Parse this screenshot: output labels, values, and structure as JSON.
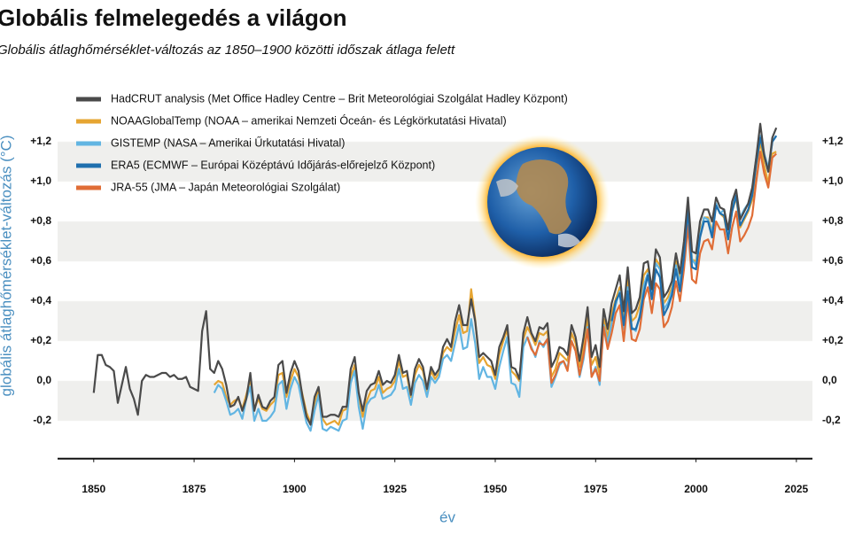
{
  "chart_data": {
    "type": "line",
    "title": "Globális felmelegedés a világon",
    "subtitle": "Globális átlaghőmérséklet-változás az 1850–1900 közötti időszak átlaga felett",
    "x_label": "év",
    "y_label": "globális átlaghőmérséklet-változás (°C)",
    "xlim": [
      1841,
      2029
    ],
    "xticks": [
      1850,
      1875,
      1900,
      1925,
      1950,
      1975,
      2000,
      2025
    ],
    "ylim": [
      -0.39,
      1.5
    ],
    "yticks": [
      {
        "value": -0.2,
        "label": "-0,2"
      },
      {
        "value": 0,
        "label": "0,0"
      },
      {
        "value": 0.2,
        "label": "+0,2"
      },
      {
        "value": 0.4,
        "label": "+0,4"
      },
      {
        "value": 0.6,
        "label": "+0,6"
      },
      {
        "value": 0.8,
        "label": "+0,8"
      },
      {
        "value": 1.0,
        "label": "+1,0"
      },
      {
        "value": 1.2,
        "label": "+1,2"
      }
    ],
    "bands": true,
    "x": [
      1850,
      1851,
      1852,
      1853,
      1854,
      1855,
      1856,
      1857,
      1858,
      1859,
      1860,
      1861,
      1862,
      1863,
      1864,
      1865,
      1866,
      1867,
      1868,
      1869,
      1870,
      1871,
      1872,
      1873,
      1874,
      1875,
      1876,
      1877,
      1878,
      1879,
      1880,
      1881,
      1882,
      1883,
      1884,
      1885,
      1886,
      1887,
      1888,
      1889,
      1890,
      1891,
      1892,
      1893,
      1894,
      1895,
      1896,
      1897,
      1898,
      1899,
      1900,
      1901,
      1902,
      1903,
      1904,
      1905,
      1906,
      1907,
      1908,
      1909,
      1910,
      1911,
      1912,
      1913,
      1914,
      1915,
      1916,
      1917,
      1918,
      1919,
      1920,
      1921,
      1922,
      1923,
      1924,
      1925,
      1926,
      1927,
      1928,
      1929,
      1930,
      1931,
      1932,
      1933,
      1934,
      1935,
      1936,
      1937,
      1938,
      1939,
      1940,
      1941,
      1942,
      1943,
      1944,
      1945,
      1946,
      1947,
      1948,
      1949,
      1950,
      1951,
      1952,
      1953,
      1954,
      1955,
      1956,
      1957,
      1958,
      1959,
      1960,
      1961,
      1962,
      1963,
      1964,
      1965,
      1966,
      1967,
      1968,
      1969,
      1970,
      1971,
      1972,
      1973,
      1974,
      1975,
      1976,
      1977,
      1978,
      1979,
      1980,
      1981,
      1982,
      1983,
      1984,
      1985,
      1986,
      1987,
      1988,
      1989,
      1990,
      1991,
      1992,
      1993,
      1994,
      1995,
      1996,
      1997,
      1998,
      1999,
      2000,
      2001,
      2002,
      2003,
      2004,
      2005,
      2006,
      2007,
      2008,
      2009,
      2010,
      2011,
      2012,
      2013,
      2014,
      2015,
      2016,
      2017,
      2018,
      2019,
      2020
    ],
    "series": [
      {
        "name": "NOAAGlobalTemp (NOAA – amerikai Nemzeti Óceán- és Légkörkutatási Hivatal)",
        "color": "#e6a532",
        "values": [
          null,
          null,
          null,
          null,
          null,
          null,
          null,
          null,
          null,
          null,
          null,
          null,
          null,
          null,
          null,
          null,
          null,
          null,
          null,
          null,
          null,
          null,
          null,
          null,
          null,
          null,
          null,
          null,
          null,
          null,
          -0.02,
          0.0,
          -0.01,
          -0.08,
          -0.12,
          -0.1,
          -0.09,
          -0.14,
          -0.07,
          0.01,
          -0.14,
          -0.09,
          -0.14,
          -0.15,
          -0.12,
          -0.1,
          0.03,
          0.04,
          -0.08,
          0.0,
          0.06,
          0.02,
          -0.07,
          -0.16,
          -0.21,
          -0.11,
          -0.04,
          -0.19,
          -0.22,
          -0.21,
          -0.2,
          -0.22,
          -0.15,
          -0.14,
          0.02,
          0.08,
          -0.08,
          -0.18,
          -0.1,
          -0.05,
          -0.04,
          0.02,
          -0.06,
          -0.04,
          -0.03,
          0.0,
          0.1,
          0.02,
          0.03,
          -0.08,
          0.03,
          0.08,
          0.05,
          -0.05,
          0.05,
          0.01,
          0.04,
          0.14,
          0.17,
          0.15,
          0.25,
          0.33,
          0.24,
          0.25,
          0.46,
          0.31,
          0.09,
          0.12,
          0.08,
          0.07,
          0.01,
          0.13,
          0.2,
          0.26,
          0.05,
          0.03,
          0.0,
          0.21,
          0.27,
          0.23,
          0.18,
          0.24,
          0.23,
          0.25,
          0.02,
          0.06,
          0.14,
          0.12,
          0.1,
          0.24,
          0.19,
          0.07,
          0.18,
          0.32,
          0.08,
          0.12,
          0.03,
          0.31,
          0.22,
          0.34,
          0.41,
          0.47,
          0.31,
          0.51,
          0.3,
          0.32,
          0.38,
          0.53,
          0.56,
          0.44,
          0.61,
          0.58,
          0.39,
          0.42,
          0.47,
          0.6,
          0.51,
          0.67,
          0.85,
          0.61,
          0.6,
          0.75,
          0.82,
          0.82,
          0.75,
          0.88,
          0.84,
          0.82,
          0.71,
          0.85,
          0.92,
          0.77,
          0.81,
          0.85,
          0.91,
          1.08,
          1.2,
          1.08,
          0.99,
          1.14,
          1.15
        ]
      },
      {
        "name": "GISTEMP (NASA – Amerikai Űrkutatási Hivatal)",
        "color": "#62b5e2",
        "values": [
          null,
          null,
          null,
          null,
          null,
          null,
          null,
          null,
          null,
          null,
          null,
          null,
          null,
          null,
          null,
          null,
          null,
          null,
          null,
          null,
          null,
          null,
          null,
          null,
          null,
          null,
          null,
          null,
          null,
          null,
          -0.06,
          -0.02,
          -0.04,
          -0.1,
          -0.17,
          -0.16,
          -0.14,
          -0.19,
          -0.09,
          -0.03,
          -0.2,
          -0.14,
          -0.2,
          -0.2,
          -0.18,
          -0.15,
          -0.02,
          0.0,
          -0.14,
          -0.04,
          0.02,
          -0.02,
          -0.12,
          -0.21,
          -0.25,
          -0.15,
          -0.07,
          -0.24,
          -0.25,
          -0.23,
          -0.24,
          -0.25,
          -0.2,
          -0.19,
          -0.01,
          0.05,
          -0.13,
          -0.24,
          -0.12,
          -0.09,
          -0.08,
          -0.02,
          -0.09,
          -0.08,
          -0.07,
          -0.04,
          0.06,
          -0.04,
          -0.03,
          -0.12,
          -0.01,
          0.03,
          0.0,
          -0.08,
          0.02,
          -0.01,
          0.02,
          0.11,
          0.13,
          0.1,
          0.19,
          0.28,
          0.16,
          0.17,
          0.31,
          0.19,
          0.01,
          0.07,
          0.02,
          0.02,
          -0.04,
          0.07,
          0.15,
          0.22,
          -0.01,
          -0.02,
          -0.08,
          0.17,
          0.22,
          0.17,
          0.12,
          0.2,
          0.17,
          0.21,
          -0.03,
          0.02,
          0.08,
          0.1,
          0.06,
          0.2,
          0.15,
          0.02,
          0.11,
          0.27,
          0.02,
          0.07,
          -0.02,
          0.28,
          0.19,
          0.29,
          0.38,
          0.45,
          0.26,
          0.47,
          0.27,
          0.25,
          0.33,
          0.48,
          0.54,
          0.43,
          0.59,
          0.56,
          0.36,
          0.39,
          0.45,
          0.58,
          0.49,
          0.62,
          0.84,
          0.61,
          0.58,
          0.73,
          0.82,
          0.81,
          0.74,
          0.89,
          0.84,
          0.86,
          0.73,
          0.87,
          0.94,
          0.82,
          0.86,
          0.89,
          0.96,
          1.12,
          1.23,
          1.14,
          1.07,
          1.2,
          1.23
        ]
      },
      {
        "name": "JRA-55 (JMA – Japán Meteorológiai Szolgálat)",
        "color": "#e06d36",
        "values": [
          null,
          null,
          null,
          null,
          null,
          null,
          null,
          null,
          null,
          null,
          null,
          null,
          null,
          null,
          null,
          null,
          null,
          null,
          null,
          null,
          null,
          null,
          null,
          null,
          null,
          null,
          null,
          null,
          null,
          null,
          null,
          null,
          null,
          null,
          null,
          null,
          null,
          null,
          null,
          null,
          null,
          null,
          null,
          null,
          null,
          null,
          null,
          null,
          null,
          null,
          null,
          null,
          null,
          null,
          null,
          null,
          null,
          null,
          null,
          null,
          null,
          null,
          null,
          null,
          null,
          null,
          null,
          null,
          null,
          null,
          null,
          null,
          null,
          null,
          null,
          null,
          null,
          null,
          null,
          null,
          null,
          null,
          null,
          null,
          null,
          null,
          null,
          null,
          null,
          null,
          null,
          null,
          null,
          null,
          null,
          null,
          null,
          null,
          null,
          null,
          null,
          null,
          null,
          null,
          null,
          null,
          null,
          null,
          0.22,
          0.16,
          0.13,
          0.19,
          0.18,
          0.21,
          -0.01,
          0.03,
          0.09,
          0.1,
          0.05,
          0.2,
          0.15,
          0.03,
          0.13,
          0.26,
          0.02,
          0.06,
          0.0,
          0.27,
          0.16,
          0.24,
          0.34,
          0.38,
          0.2,
          0.4,
          0.21,
          0.2,
          0.26,
          0.41,
          0.47,
          0.34,
          0.49,
          0.46,
          0.27,
          0.3,
          0.37,
          0.5,
          0.4,
          0.56,
          0.78,
          0.51,
          0.49,
          0.64,
          0.7,
          0.71,
          0.66,
          0.8,
          0.76,
          0.76,
          0.64,
          0.77,
          0.85,
          0.7,
          0.73,
          0.77,
          0.83,
          1.0,
          1.15,
          1.04,
          0.97,
          1.12,
          1.14
        ]
      },
      {
        "name": "ERA5 (ECMWF – Európai Középtávú Időjárás-előrejelző Központ)",
        "color": "#1f6fae",
        "values": [
          null,
          null,
          null,
          null,
          null,
          null,
          null,
          null,
          null,
          null,
          null,
          null,
          null,
          null,
          null,
          null,
          null,
          null,
          null,
          null,
          null,
          null,
          null,
          null,
          null,
          null,
          null,
          null,
          null,
          null,
          null,
          null,
          null,
          null,
          null,
          null,
          null,
          null,
          null,
          null,
          null,
          null,
          null,
          null,
          null,
          null,
          null,
          null,
          null,
          null,
          null,
          null,
          null,
          null,
          null,
          null,
          null,
          null,
          null,
          null,
          null,
          null,
          null,
          null,
          null,
          null,
          null,
          null,
          null,
          null,
          null,
          null,
          null,
          null,
          null,
          null,
          null,
          null,
          null,
          null,
          null,
          null,
          null,
          null,
          null,
          null,
          null,
          null,
          null,
          null,
          null,
          null,
          null,
          null,
          null,
          null,
          null,
          null,
          null,
          null,
          null,
          null,
          null,
          null,
          null,
          null,
          null,
          null,
          null,
          null,
          null,
          null,
          null,
          null,
          null,
          null,
          null,
          null,
          null,
          null,
          null,
          null,
          null,
          null,
          null,
          null,
          null,
          null,
          null,
          0.3,
          0.4,
          0.44,
          0.28,
          0.45,
          0.26,
          0.26,
          0.32,
          0.44,
          0.53,
          0.41,
          0.56,
          0.52,
          0.33,
          0.37,
          0.43,
          0.56,
          0.45,
          0.62,
          0.86,
          0.57,
          0.56,
          0.72,
          0.8,
          0.8,
          0.72,
          0.88,
          0.84,
          0.83,
          0.71,
          0.85,
          0.93,
          0.78,
          0.82,
          0.86,
          0.93,
          1.09,
          1.22,
          1.13,
          1.05,
          1.2,
          1.23
        ]
      },
      {
        "name": "HadCRUT analysis (Met Office Hadley Centre – Brit Meteorológiai Szolgálat Hadley Központ)",
        "color": "#4a4a4a",
        "values": [
          -0.06,
          0.13,
          0.13,
          0.08,
          0.07,
          0.05,
          -0.11,
          -0.02,
          0.07,
          -0.04,
          -0.09,
          -0.17,
          0.0,
          0.03,
          0.02,
          0.02,
          0.03,
          0.04,
          0.04,
          0.02,
          0.03,
          0.01,
          0.01,
          0.02,
          -0.03,
          -0.04,
          -0.05,
          0.25,
          0.35,
          0.06,
          0.04,
          0.1,
          0.06,
          -0.02,
          -0.13,
          -0.12,
          -0.08,
          -0.15,
          -0.09,
          0.04,
          -0.15,
          -0.07,
          -0.13,
          -0.14,
          -0.1,
          -0.08,
          0.08,
          0.1,
          -0.06,
          0.04,
          0.1,
          0.05,
          -0.08,
          -0.18,
          -0.22,
          -0.08,
          -0.03,
          -0.18,
          -0.18,
          -0.17,
          -0.17,
          -0.18,
          -0.13,
          -0.13,
          0.06,
          0.12,
          -0.06,
          -0.15,
          -0.05,
          -0.02,
          -0.01,
          0.05,
          -0.02,
          0.0,
          -0.01,
          0.03,
          0.13,
          0.04,
          0.05,
          -0.07,
          0.06,
          0.11,
          0.07,
          -0.04,
          0.07,
          0.03,
          0.06,
          0.17,
          0.21,
          0.17,
          0.3,
          0.38,
          0.28,
          0.28,
          0.41,
          0.3,
          0.12,
          0.14,
          0.12,
          0.1,
          0.03,
          0.17,
          0.22,
          0.28,
          0.07,
          0.06,
          0.01,
          0.24,
          0.32,
          0.24,
          0.2,
          0.27,
          0.26,
          0.29,
          0.07,
          0.11,
          0.17,
          0.16,
          0.13,
          0.28,
          0.22,
          0.1,
          0.22,
          0.37,
          0.12,
          0.18,
          0.07,
          0.36,
          0.26,
          0.39,
          0.46,
          0.53,
          0.35,
          0.57,
          0.34,
          0.36,
          0.42,
          0.59,
          0.6,
          0.46,
          0.66,
          0.62,
          0.42,
          0.45,
          0.5,
          0.64,
          0.54,
          0.7,
          0.92,
          0.65,
          0.64,
          0.8,
          0.86,
          0.86,
          0.8,
          0.92,
          0.87,
          0.86,
          0.76,
          0.9,
          0.96,
          0.81,
          0.85,
          0.89,
          0.97,
          1.12,
          1.29,
          1.13,
          1.05,
          1.22,
          1.27
        ]
      }
    ],
    "legend_order": [
      4,
      0,
      1,
      3,
      2
    ]
  }
}
